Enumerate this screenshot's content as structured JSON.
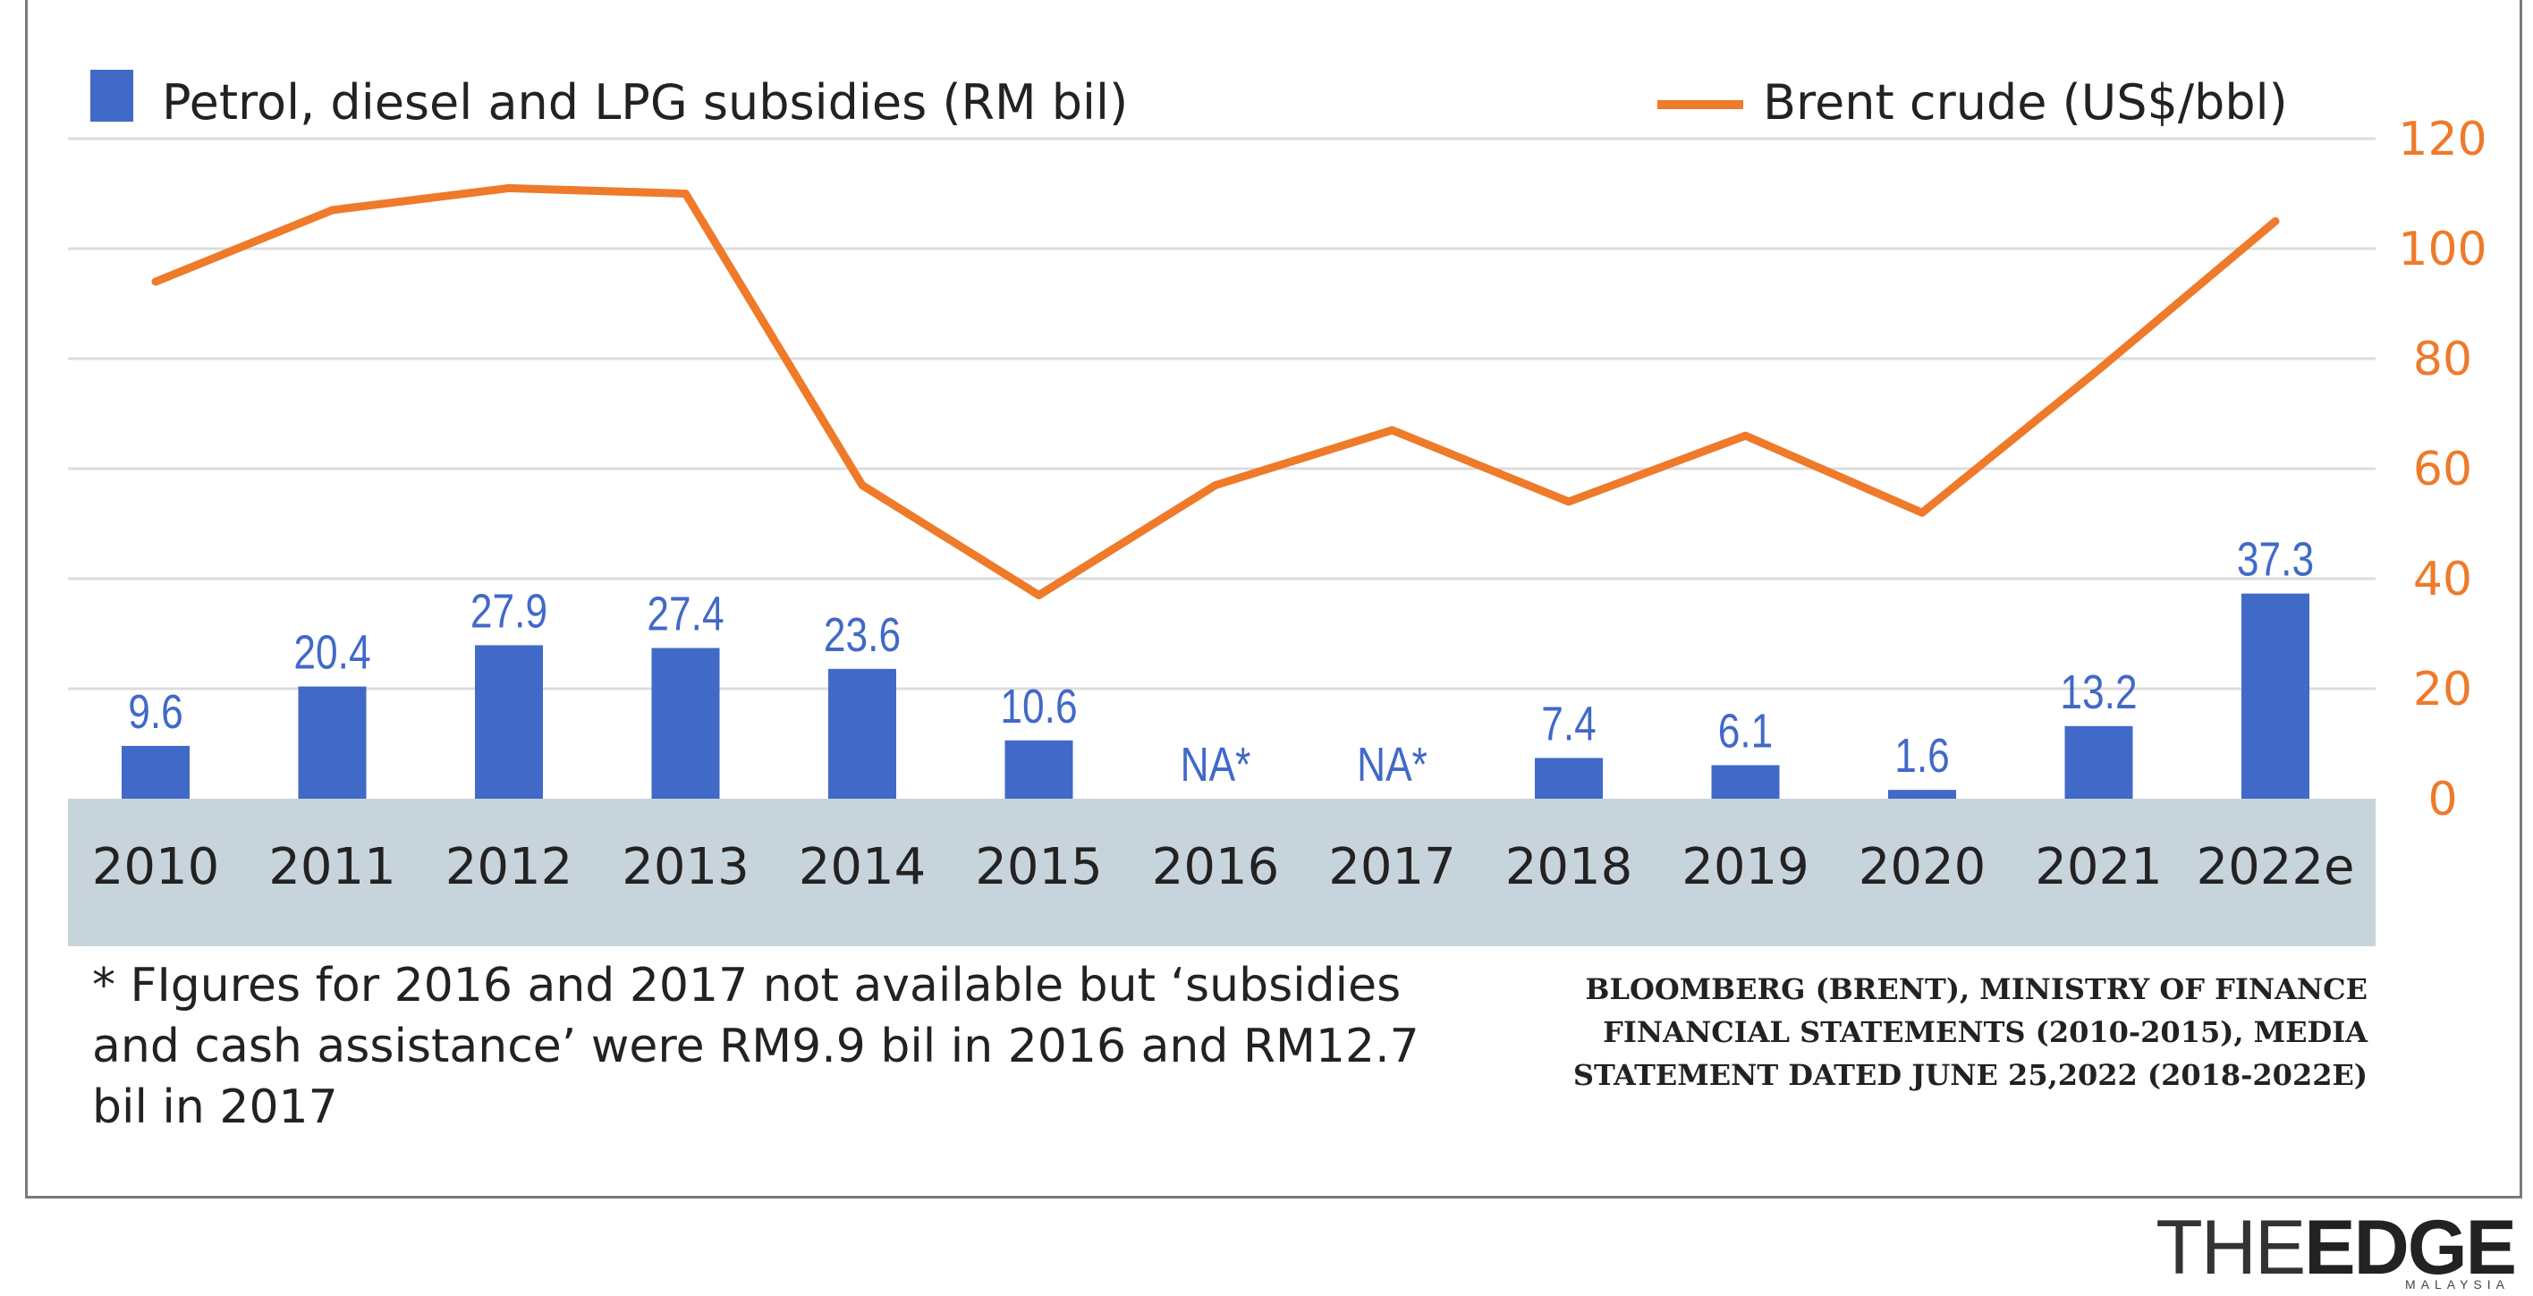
{
  "chart_data": {
    "type": "bar+line",
    "categories": [
      "2010",
      "2011",
      "2012",
      "2013",
      "2014",
      "2015",
      "2016",
      "2017",
      "2018",
      "2019",
      "2020",
      "2021",
      "2022e"
    ],
    "bar_series": {
      "name": "Petrol, diesel and LPG subsidies (RM bil)",
      "values": [
        9.6,
        20.4,
        27.9,
        27.4,
        23.6,
        10.6,
        null,
        null,
        7.4,
        6.1,
        1.6,
        13.2,
        37.3
      ],
      "labels": [
        "9.6",
        "20.4",
        "27.9",
        "27.4",
        "23.6",
        "10.6",
        "NA*",
        "NA*",
        "7.4",
        "6.1",
        "1.6",
        "13.2",
        "37.3"
      ],
      "color": "#4169c8"
    },
    "line_series": {
      "name": "Brent crude (US$/bbl)",
      "values": [
        94,
        107,
        111,
        110,
        57,
        37,
        57,
        67,
        54,
        66,
        52,
        78,
        105
      ],
      "color": "#ee7a2a"
    },
    "y_right": {
      "ticks": [
        "0",
        "20",
        "40",
        "60",
        "80",
        "100",
        "120"
      ],
      "range": [
        0,
        120
      ],
      "color": "#ee7a2a"
    },
    "grid": true,
    "legend": "top"
  },
  "footnote": "* FIgures for 2016 and 2017 not available but ‘subsidies and cash assistance’ were RM9.9 bil in 2016 and RM12.7 bil in 2017",
  "source": [
    "BLOOMBERG (BRENT), MINISTRY OF FINANCE",
    "FINANCIAL STATEMENTS (2010-2015), MEDIA",
    "STATEMENT DATED JUNE 25,2022 (2018-2022E)"
  ],
  "logo": {
    "the": "THE",
    "edge": "EDGE",
    "sub": "MALAYSIA"
  },
  "colors": {
    "axis_band": "#c8d4dc",
    "grid": "#dcdcdc",
    "bar_label": "#4169c8"
  }
}
